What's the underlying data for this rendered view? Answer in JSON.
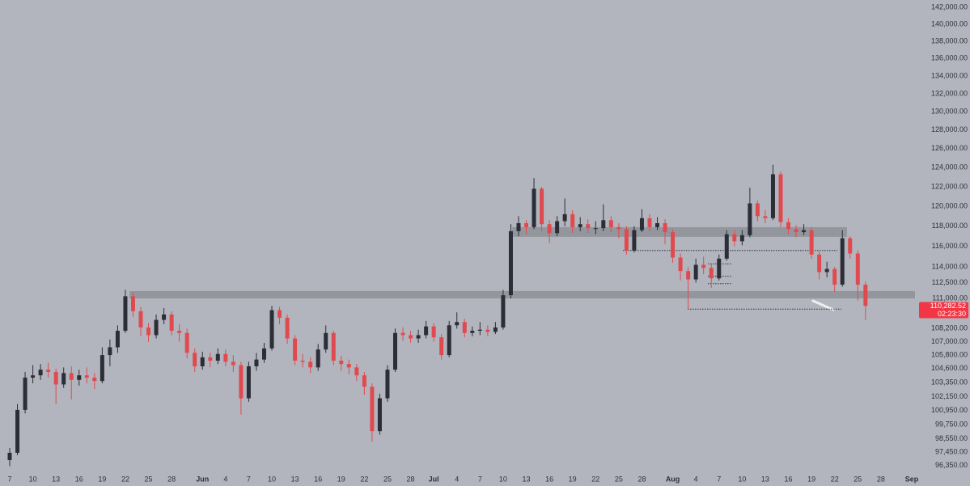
{
  "chart_data": {
    "type": "candlestick",
    "log": true,
    "colors": {
      "up": "#2b2e37",
      "down": "#e04a4f"
    },
    "categories": [
      "7",
      null,
      null,
      "10",
      null,
      null,
      "13",
      null,
      null,
      "16",
      null,
      null,
      "19",
      null,
      null,
      "22",
      null,
      null,
      "25",
      null,
      null,
      "28",
      null,
      null,
      null,
      "Jun",
      null,
      null,
      "4",
      null,
      null,
      "7",
      null,
      null,
      "10",
      null,
      null,
      "13",
      null,
      null,
      "16",
      null,
      null,
      "19",
      null,
      null,
      "22",
      null,
      null,
      "25",
      null,
      null,
      "28",
      null,
      null,
      "Jul",
      null,
      null,
      "4",
      null,
      null,
      "7",
      null,
      null,
      "10",
      null,
      null,
      "13",
      null,
      null,
      "16",
      null,
      null,
      "19",
      null,
      null,
      "22",
      null,
      null,
      "25",
      null,
      null,
      "28",
      null,
      null,
      null,
      "Aug",
      null,
      null,
      "4",
      null,
      null,
      "7",
      null,
      null,
      "10",
      null,
      null,
      "13",
      null,
      null,
      "16",
      null,
      null,
      "19",
      null,
      null,
      "22",
      null,
      null,
      "25",
      null,
      null,
      "28",
      null,
      null,
      null,
      "Sep"
    ],
    "open": [
      96800,
      97400,
      101000,
      103800,
      104000,
      104500,
      104300,
      103200,
      104200,
      103600,
      104000,
      103800,
      103500,
      105800,
      106500,
      108000,
      111200,
      109800,
      108300,
      107600,
      109000,
      109500,
      108000,
      107800,
      106000,
      104800,
      105600,
      105300,
      105900,
      105200,
      104900,
      102000,
      104800,
      105400,
      106400,
      109900,
      109200,
      107300,
      105300,
      105200,
      104700,
      106300,
      107800,
      105300,
      105000,
      104700,
      104000,
      103000,
      99200,
      102000,
      104500,
      107800,
      107600,
      107300,
      107600,
      108400,
      107400,
      105800,
      108500,
      108800,
      107800,
      108000,
      108100,
      107900,
      108300,
      111300,
      117500,
      118300,
      117900,
      121800,
      118200,
      117300,
      118500,
      119200,
      117900,
      118200,
      117800,
      117800,
      118600,
      117900,
      117700,
      115600,
      117600,
      118800,
      117900,
      118300,
      117400,
      114900,
      113600,
      112800,
      114200,
      113900,
      112900,
      114800,
      117200,
      116500,
      117100,
      120300,
      119000,
      118800,
      123300,
      118400,
      117700,
      117400,
      117600,
      115200,
      113500,
      113800,
      112300,
      116800,
      115300,
      112300,
      null,
      null,
      null,
      null,
      null,
      null
    ],
    "high": [
      97800,
      101500,
      104300,
      104900,
      105000,
      105100,
      104600,
      104700,
      104800,
      104500,
      104700,
      104200,
      106500,
      107200,
      108500,
      111800,
      111600,
      110200,
      108700,
      109500,
      110100,
      109800,
      108600,
      108200,
      106400,
      106100,
      106000,
      106400,
      106300,
      105800,
      105200,
      105200,
      106000,
      106900,
      110300,
      110200,
      109500,
      107600,
      105900,
      105600,
      106800,
      108500,
      108000,
      105700,
      105400,
      105000,
      104300,
      103300,
      102400,
      104900,
      108200,
      108300,
      108000,
      108100,
      108900,
      108700,
      107700,
      108900,
      109700,
      109100,
      108400,
      108800,
      108500,
      108800,
      111800,
      118200,
      119000,
      118600,
      122900,
      122000,
      118600,
      119000,
      120800,
      119600,
      118900,
      118700,
      118500,
      120200,
      119000,
      118300,
      118000,
      118000,
      119700,
      119200,
      118900,
      118700,
      117700,
      115300,
      114000,
      114800,
      115000,
      114300,
      115200,
      117600,
      117600,
      117600,
      121900,
      120600,
      119600,
      124300,
      123600,
      118800,
      118100,
      118200,
      117900,
      115500,
      114500,
      114000,
      117600,
      117000,
      115600,
      112600,
      null,
      null,
      null,
      null,
      null,
      null
    ],
    "low": [
      96300,
      97200,
      100700,
      103300,
      103600,
      103800,
      101500,
      102900,
      101900,
      103100,
      103300,
      102800,
      103300,
      104800,
      106000,
      107800,
      109300,
      107500,
      107000,
      107300,
      108600,
      107600,
      107000,
      105500,
      104300,
      104500,
      104700,
      105000,
      104800,
      104300,
      100600,
      101700,
      104400,
      105100,
      106200,
      108600,
      106800,
      104900,
      104700,
      104200,
      104400,
      106000,
      104900,
      104400,
      104100,
      103500,
      102300,
      98300,
      98900,
      101700,
      104300,
      107100,
      106900,
      106900,
      107300,
      107000,
      105400,
      105600,
      108200,
      107400,
      107500,
      107600,
      107500,
      107700,
      108100,
      111000,
      117000,
      117200,
      117700,
      117500,
      116300,
      117000,
      118000,
      117300,
      117500,
      117300,
      117200,
      117500,
      117400,
      116800,
      115200,
      115400,
      117400,
      117500,
      117600,
      116200,
      114400,
      112700,
      110000,
      112500,
      113300,
      112000,
      112700,
      114600,
      116000,
      116100,
      116900,
      118500,
      118300,
      118600,
      117900,
      117200,
      116900,
      117100,
      114800,
      112800,
      113000,
      111600,
      112100,
      114800,
      110800,
      109000,
      null,
      null,
      null,
      null,
      null,
      null
    ],
    "close": [
      97400,
      101000,
      103800,
      104000,
      104500,
      104300,
      103200,
      104200,
      103600,
      104000,
      103800,
      103500,
      105800,
      106500,
      108000,
      111200,
      109800,
      108300,
      107600,
      109000,
      109500,
      108000,
      107800,
      106000,
      104800,
      105600,
      105300,
      105900,
      105200,
      104900,
      102000,
      104800,
      105400,
      106400,
      109900,
      109200,
      107300,
      105300,
      105200,
      104700,
      106300,
      107800,
      105300,
      105000,
      104700,
      104000,
      103000,
      99200,
      102000,
      104500,
      107800,
      107600,
      107300,
      107600,
      108400,
      107400,
      105800,
      108500,
      108800,
      107800,
      108000,
      108100,
      107900,
      108300,
      111300,
      117500,
      118300,
      117900,
      121800,
      118200,
      117300,
      118500,
      119200,
      117900,
      118200,
      117800,
      117800,
      118600,
      117900,
      117700,
      115600,
      117600,
      118800,
      117900,
      118300,
      117400,
      114900,
      113600,
      112800,
      114200,
      113900,
      112900,
      114800,
      117200,
      116500,
      117100,
      120300,
      119000,
      118800,
      123300,
      118400,
      117700,
      117400,
      117600,
      115200,
      113500,
      113800,
      112300,
      116800,
      115300,
      112300,
      110300,
      null,
      null,
      null,
      null,
      null,
      null
    ],
    "ylim": [
      94700,
      142900
    ],
    "yticks": [
      {
        "value": 142000,
        "label": "142,000.00"
      },
      {
        "value": 140000,
        "label": "140,000.00"
      },
      {
        "value": 138000,
        "label": "138,000.00"
      },
      {
        "value": 136000,
        "label": "136,000.00"
      },
      {
        "value": 134000,
        "label": "134,000.00"
      },
      {
        "value": 132000,
        "label": "132,000.00"
      },
      {
        "value": 130000,
        "label": "130,000.00"
      },
      {
        "value": 128000,
        "label": "128,000.00"
      },
      {
        "value": 126000,
        "label": "126,000.00"
      },
      {
        "value": 124000,
        "label": "124,000.00"
      },
      {
        "value": 122000,
        "label": "122,000.00"
      },
      {
        "value": 120000,
        "label": "120,000.00"
      },
      {
        "value": 118000,
        "label": "118,000.00"
      },
      {
        "value": 116000,
        "label": "116,000.00"
      },
      {
        "value": 114000,
        "label": "114,000.00"
      },
      {
        "value": 112500,
        "label": "112,500.00"
      },
      {
        "value": 111000,
        "label": "111,000.00"
      },
      {
        "value": 108200,
        "label": "108,200.00"
      },
      {
        "value": 107000,
        "label": "107,000.00"
      },
      {
        "value": 105800,
        "label": "105,800.00"
      },
      {
        "value": 104600,
        "label": "104,600.00"
      },
      {
        "value": 103350,
        "label": "103,350.00"
      },
      {
        "value": 102150,
        "label": "102,150.00"
      },
      {
        "value": 100950,
        "label": "100,950.00"
      },
      {
        "value": 99750,
        "label": "99,750.00"
      },
      {
        "value": 98550,
        "label": "98,550.00"
      },
      {
        "value": 97450,
        "label": "97,450.00"
      },
      {
        "value": 96350,
        "label": "96,350.00"
      }
    ],
    "zones": [
      {
        "low": 111000,
        "high": 111690,
        "color": "#8e9098"
      },
      {
        "low": 116940,
        "high": 117900,
        "color": "#8e9098"
      }
    ],
    "levels": [
      115600,
      110000,
      114300,
      113100,
      112400
    ],
    "current_price": {
      "value": 110282.52,
      "label": "110,282.52"
    },
    "countdown": "02:23:30",
    "badge_color": "#f23645"
  }
}
